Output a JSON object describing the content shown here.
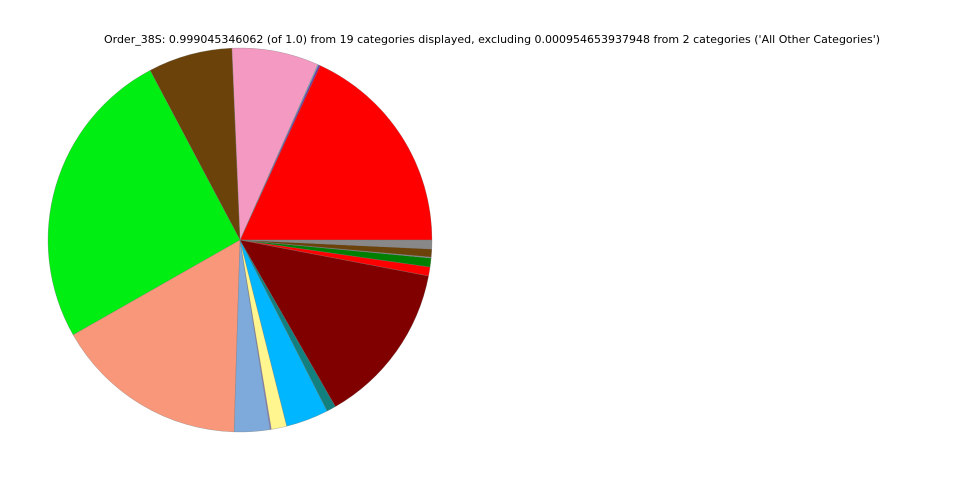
{
  "chart_data": {
    "type": "pie",
    "title": "Order_38S: 0.999045346062 (of 1.0) from 19 categories displayed, excluding 0.000954653937948 from 2 categories ('All Other Categories')",
    "start_angle_deg": 0,
    "direction": "counterclockwise",
    "legend": "none",
    "slices": [
      {
        "value": 0.1814,
        "color": "#ff0000"
      },
      {
        "value": 0.0014,
        "color": "#7b2fa8"
      },
      {
        "value": 0.0008,
        "color": "#5fd3e0"
      },
      {
        "value": 0.0731,
        "color": "#f49ac2"
      },
      {
        "value": 0.0708,
        "color": "#6b420a"
      },
      {
        "value": 0.2547,
        "color": "#00ee11"
      },
      {
        "value": 0.1628,
        "color": "#f8977a"
      },
      {
        "value": 0.03,
        "color": "#7ea9db"
      },
      {
        "value": 0.001,
        "color": "#8e7cc3"
      },
      {
        "value": 0.013,
        "color": "#fff68f"
      },
      {
        "value": 0.0358,
        "color": "#00b7ff"
      },
      {
        "value": 0.0078,
        "color": "#138080"
      },
      {
        "value": 0.1372,
        "color": "#800000"
      },
      {
        "value": 0.0075,
        "color": "#ff0000"
      },
      {
        "value": 0.0075,
        "color": "#008000"
      },
      {
        "value": 0.0004,
        "color": "#7aa0b0"
      },
      {
        "value": 0.0004,
        "color": "#b0b0b0"
      },
      {
        "value": 0.0067,
        "color": "#6b420a"
      },
      {
        "value": 0.0075,
        "color": "#888888"
      }
    ]
  }
}
